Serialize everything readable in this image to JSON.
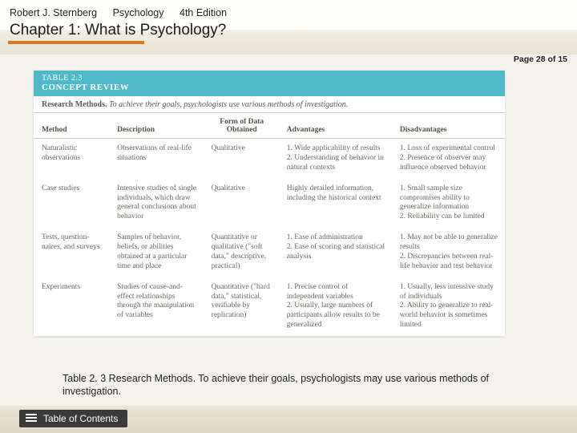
{
  "header": {
    "author": "Robert J. Sternberg",
    "book": "Psychology",
    "edition": "4th Edition",
    "chapter": "Chapter 1:  What is Psychology?"
  },
  "pageIndicator": "Page 28 of 15",
  "table": {
    "number": "TABLE 2.3",
    "title": "CONCEPT REVIEW",
    "subtitleBold": "Research Methods.",
    "subtitleRest": " To achieve their goals, psychologists use various methods of investigation.",
    "columns": [
      "Method",
      "Description",
      "Form of Data Obtained",
      "Advantages",
      "Disadvantages"
    ],
    "rows": [
      {
        "method": "Naturalistic observations",
        "description": "Observations of real-life situations",
        "form": "Qualitative",
        "advantages": "1. Wide applicability of results\n2. Understanding of behavior in natural contexts",
        "disadvantages": "1. Loss of experimental control\n2. Presence of observer may influence observed behavior"
      },
      {
        "method": "Case studies",
        "description": "Intensive studies of single individuals, which draw general conclusions about behavior",
        "form": "Qualitative",
        "advantages": "Highly detailed information, including the historical context",
        "disadvantages": "1. Small sample size compromises ability to generalize information\n2. Reliability can be limited"
      },
      {
        "method": "Tests, question-\nnaires, and surveys",
        "description": "Samples of behavior, beliefs, or abilities obtained at a particular time and place",
        "form": "Quantitative or qualitative (\"soft data,\" descriptive, practical)",
        "advantages": "1. Ease of administration\n2. Ease of scoring and statistical analysis",
        "disadvantages": "1. May not be able to generalize results\n2. Discrepancies between real-life behavior and test behavior"
      },
      {
        "method": "Experiments",
        "description": "Studies of cause-and-effect relationships through the manipulation of variables",
        "form": "Quantitative (\"hard data,\" statistical, verifiable by replication)",
        "advantages": "1. Precise control of independent variables\n2. Usually, large numbers of participants allow results to be generalized",
        "disadvantages": "1. Usually, less intensive study of individuals\n2. Ability to generalize to real-world behavior is sometimes limited"
      }
    ]
  },
  "caption": "Table 2. 3 Research Methods. To achieve their goals, psychologists may use various methods of investigation.",
  "footer": {
    "toc": "Table of Contents"
  }
}
